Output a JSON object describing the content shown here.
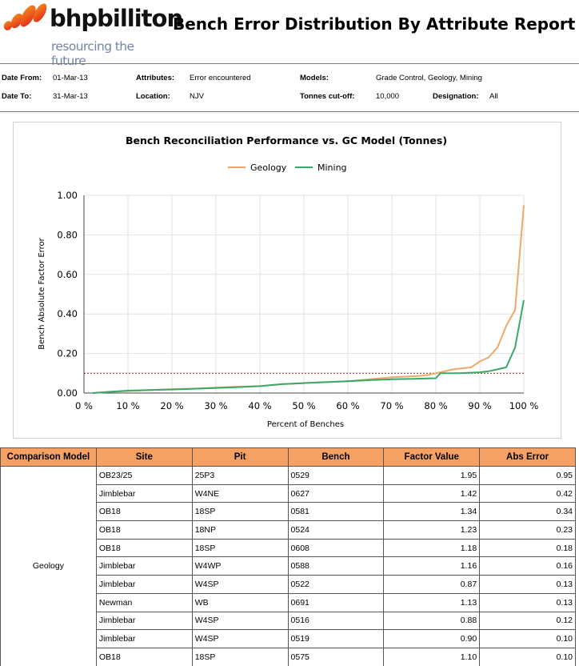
{
  "header": {
    "logo_word": "bhpbilliton",
    "logo_tagline": "resourcing the future",
    "title": "Bench Error Distribution By Attribute Report"
  },
  "filters": {
    "date_from_label": "Date From:",
    "date_from": "01-Mar-13",
    "date_to_label": "Date To:",
    "date_to": "31-Mar-13",
    "attributes_label": "Attributes:",
    "attributes": "Error encountered",
    "location_label": "Location:",
    "location": "NJV",
    "models_label": "Models:",
    "models": "Grade Control, Geology, Mining",
    "tonnes_label": "Tonnes cut-off:",
    "tonnes": "10,000",
    "designation_label": "Designation:",
    "designation": "All"
  },
  "chart_data": {
    "type": "line",
    "title": "Bench Reconciliation Performance vs. GC Model (Tonnes)",
    "xlabel": "Percent of Benches",
    "ylabel": "Bench Absolute Factor Error",
    "xlim": [
      0,
      100
    ],
    "ylim": [
      0,
      1
    ],
    "x_ticks": [
      "0 %",
      "10 %",
      "20 %",
      "30 %",
      "40 %",
      "50 %",
      "60 %",
      "70 %",
      "80 %",
      "90 %",
      "100 %"
    ],
    "y_ticks": [
      "0.00",
      "0.20",
      "0.40",
      "0.60",
      "0.80",
      "1.00"
    ],
    "grid": true,
    "legend_position": "top",
    "threshold": 0.1,
    "series": [
      {
        "name": "Geology",
        "color": "#f0a868",
        "x": [
          2,
          5,
          10,
          15,
          20,
          25,
          30,
          35,
          40,
          45,
          50,
          55,
          60,
          65,
          70,
          75,
          78,
          80,
          84,
          88,
          90,
          92,
          94,
          96,
          98,
          100
        ],
        "y": [
          0,
          0.005,
          0.01,
          0.015,
          0.02,
          0.022,
          0.028,
          0.032,
          0.035,
          0.045,
          0.05,
          0.055,
          0.06,
          0.07,
          0.08,
          0.085,
          0.09,
          0.1,
          0.12,
          0.13,
          0.16,
          0.18,
          0.23,
          0.34,
          0.42,
          0.95
        ]
      },
      {
        "name": "Mining",
        "color": "#3aa86a",
        "x": [
          2,
          5,
          10,
          15,
          20,
          25,
          30,
          35,
          40,
          45,
          50,
          55,
          60,
          65,
          70,
          75,
          80,
          81,
          85,
          90,
          92,
          94,
          96,
          98,
          100
        ],
        "y": [
          0,
          0.005,
          0.012,
          0.015,
          0.018,
          0.022,
          0.025,
          0.03,
          0.035,
          0.045,
          0.05,
          0.055,
          0.06,
          0.065,
          0.07,
          0.072,
          0.075,
          0.1,
          0.1,
          0.105,
          0.11,
          0.12,
          0.13,
          0.23,
          0.47
        ]
      }
    ]
  },
  "table": {
    "headers": [
      "Comparison Model",
      "Site",
      "Pit",
      "Bench",
      "Factor Value",
      "Abs Error"
    ],
    "model": "Geology",
    "rows": [
      [
        "OB23/25",
        "25P3",
        "0529",
        "1.95",
        "0.95"
      ],
      [
        "Jimblebar",
        "W4NE",
        "0627",
        "1.42",
        "0.42"
      ],
      [
        "OB18",
        "18SP",
        "0581",
        "1.34",
        "0.34"
      ],
      [
        "OB18",
        "18NP",
        "0524",
        "1.23",
        "0.23"
      ],
      [
        "OB18",
        "18SP",
        "0608",
        "1.18",
        "0.18"
      ],
      [
        "Jimblebar",
        "W4WP",
        "0588",
        "1.16",
        "0.16"
      ],
      [
        "Jimblebar",
        "W4SP",
        "0522",
        "0.87",
        "0.13"
      ],
      [
        "Newman",
        "WB",
        "0691",
        "1.13",
        "0.13"
      ],
      [
        "Jimblebar",
        "W4SP",
        "0516",
        "0.88",
        "0.12"
      ],
      [
        "Jimblebar",
        "W4SP",
        "0519",
        "0.90",
        "0.10"
      ],
      [
        "OB18",
        "18SP",
        "0575",
        "1.10",
        "0.10"
      ]
    ]
  }
}
